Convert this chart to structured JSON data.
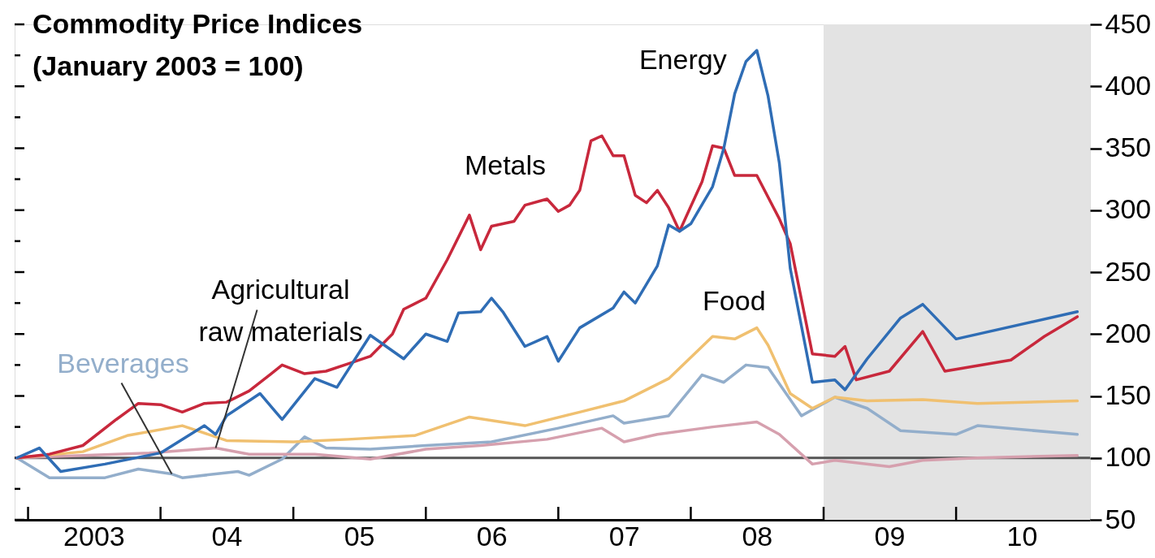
{
  "chart_data": {
    "type": "line",
    "title": "Commodity Price Indices",
    "subtitle": "(January 2003 = 100)",
    "xlim": [
      "2002-11-25",
      "2011-01-05"
    ],
    "ylim": [
      50,
      450
    ],
    "xticks": [
      {
        "value": "2003-01-01",
        "label": null
      },
      {
        "value": "2003-07-01",
        "label": "2003"
      },
      {
        "value": "2004-01-01",
        "label": null
      },
      {
        "value": "2004-07-01",
        "label": "04"
      },
      {
        "value": "2005-01-01",
        "label": null
      },
      {
        "value": "2005-07-01",
        "label": "05"
      },
      {
        "value": "2006-01-01",
        "label": null
      },
      {
        "value": "2006-07-01",
        "label": "06"
      },
      {
        "value": "2007-01-01",
        "label": null
      },
      {
        "value": "2007-07-01",
        "label": "07"
      },
      {
        "value": "2008-01-01",
        "label": null
      },
      {
        "value": "2008-07-01",
        "label": "08"
      },
      {
        "value": "2009-01-01",
        "label": null
      },
      {
        "value": "2009-07-01",
        "label": "09"
      },
      {
        "value": "2010-01-01",
        "label": null
      },
      {
        "value": "2010-07-01",
        "label": "10"
      }
    ],
    "yticks": [
      50,
      {
        "value": 75,
        "label": null
      },
      100,
      {
        "value": 125,
        "label": null
      },
      150,
      {
        "value": 175,
        "label": null
      },
      200,
      {
        "value": 225,
        "label": null
      },
      250,
      {
        "value": 275,
        "label": null
      },
      300,
      {
        "value": 325,
        "label": null
      },
      350,
      {
        "value": 375,
        "label": null
      },
      400,
      {
        "value": 425,
        "label": null
      },
      450
    ],
    "ref_lines": [
      {
        "axis": "y",
        "value": 100,
        "color": "#555555"
      }
    ],
    "bands": [
      {
        "axis": "x",
        "from": "2009-01-01",
        "to": "2011-01-05",
        "color": "#e3e3e3"
      }
    ],
    "series": [
      {
        "name": "Energy",
        "color": "#2f6db5",
        "x": [
          "2002-12",
          "2003-02",
          "2003-04",
          "2003-08",
          "2004-01",
          "2004-05",
          "2004-06",
          "2004-07",
          "2004-10",
          "2004-12",
          "2005-03",
          "2005-05",
          "2005-08",
          "2005-11",
          "2006-01",
          "2006-03",
          "2006-04",
          "2006-06",
          "2006-07",
          "2006-08",
          "2006-10",
          "2006-12",
          "2007-01",
          "2007-03",
          "2007-06",
          "2007-07",
          "2007-08",
          "2007-10",
          "2007-11",
          "2007-12",
          "2008-01",
          "2008-03",
          "2008-04",
          "2008-05",
          "2008-06",
          "2008-07",
          "2008-08",
          "2008-09",
          "2008-10",
          "2008-12",
          "2009-02",
          "2009-03",
          "2009-05",
          "2009-08",
          "2009-10",
          "2010-01",
          "2010-12"
        ],
        "values": [
          100,
          108,
          89,
          95,
          104,
          126,
          119,
          134,
          152,
          131,
          164,
          157,
          199,
          180,
          200,
          194,
          217,
          218,
          229,
          218,
          190,
          198,
          178,
          205,
          221,
          234,
          225,
          255,
          288,
          283,
          289,
          319,
          350,
          394,
          420,
          429,
          392,
          338,
          253,
          161,
          163,
          155,
          180,
          213,
          224,
          196,
          218
        ]
      },
      {
        "name": "Metals",
        "color": "#c8283c",
        "x": [
          "2002-12",
          "2003-03",
          "2003-06",
          "2003-09",
          "2003-11",
          "2004-01",
          "2004-03",
          "2004-05",
          "2004-07",
          "2004-09",
          "2004-11",
          "2004-12",
          "2005-02",
          "2005-04",
          "2005-06",
          "2005-08",
          "2005-10",
          "2005-11",
          "2006-01",
          "2006-03",
          "2006-05",
          "2006-06",
          "2006-07",
          "2006-09",
          "2006-10",
          "2006-12",
          "2007-01",
          "2007-02",
          "2007-03",
          "2007-04",
          "2007-05",
          "2007-06",
          "2007-07",
          "2007-08",
          "2007-09",
          "2007-10",
          "2007-11",
          "2007-12",
          "2008-02",
          "2008-03",
          "2008-04",
          "2008-05",
          "2008-07",
          "2008-09",
          "2008-10",
          "2008-12",
          "2009-02",
          "2009-03",
          "2009-04",
          "2009-07",
          "2009-10",
          "2009-12",
          "2010-06",
          "2010-09",
          "2010-12"
        ],
        "values": [
          100,
          103,
          110,
          131,
          144,
          143,
          137,
          144,
          145,
          154,
          168,
          175,
          168,
          170,
          176,
          182,
          200,
          220,
          229,
          260,
          296,
          268,
          287,
          291,
          304,
          309,
          299,
          304,
          316,
          356,
          360,
          344,
          344,
          312,
          306,
          316,
          302,
          283,
          323,
          352,
          350,
          328,
          328,
          293,
          273,
          184,
          182,
          190,
          163,
          170,
          202,
          170,
          179,
          198,
          214
        ]
      },
      {
        "name": "Food",
        "color": "#f0c070",
        "x": [
          "2002-12",
          "2003-06",
          "2003-10",
          "2004-03",
          "2004-07",
          "2005-01",
          "2005-06",
          "2005-12",
          "2006-05",
          "2006-10",
          "2007-03",
          "2007-07",
          "2007-11",
          "2008-03",
          "2008-05",
          "2008-07",
          "2008-08",
          "2008-10",
          "2008-12",
          "2009-02",
          "2009-05",
          "2009-10",
          "2010-03",
          "2010-12"
        ],
        "values": [
          100,
          105,
          118,
          126,
          114,
          113,
          115,
          118,
          133,
          126,
          137,
          146,
          164,
          198,
          196,
          205,
          191,
          152,
          140,
          149,
          146,
          147,
          144,
          146
        ]
      },
      {
        "name": "Agricultural raw materials",
        "color": "#d6a0ae",
        "x": [
          "2002-12",
          "2003-06",
          "2003-12",
          "2004-06",
          "2004-09",
          "2005-03",
          "2005-08",
          "2006-01",
          "2006-06",
          "2006-12",
          "2007-05",
          "2007-07",
          "2007-10",
          "2008-03",
          "2008-07",
          "2008-09",
          "2008-12",
          "2009-02",
          "2009-07",
          "2009-10",
          "2010-03",
          "2010-12"
        ],
        "values": [
          100,
          102,
          104,
          108,
          103,
          103,
          99,
          107,
          110,
          115,
          124,
          113,
          119,
          125,
          129,
          119,
          95,
          98,
          93,
          98,
          100,
          102
        ]
      },
      {
        "name": "Beverages",
        "color": "#93aecb",
        "x": [
          "2002-12",
          "2003-03",
          "2003-08",
          "2003-11",
          "2004-02",
          "2004-03",
          "2004-08",
          "2004-09",
          "2004-12",
          "2005-02",
          "2005-04",
          "2005-08",
          "2006-01",
          "2006-07",
          "2007-01",
          "2007-06",
          "2007-07",
          "2007-11",
          "2008-02",
          "2008-04",
          "2008-06",
          "2008-08",
          "2008-11",
          "2009-02",
          "2009-05",
          "2009-08",
          "2010-01",
          "2010-03",
          "2010-12"
        ],
        "values": [
          100,
          84,
          84,
          91,
          87,
          84,
          89,
          86,
          99,
          117,
          108,
          107,
          110,
          113,
          124,
          134,
          128,
          134,
          167,
          161,
          175,
          173,
          134,
          149,
          140,
          122,
          119,
          126,
          119
        ]
      }
    ]
  }
}
